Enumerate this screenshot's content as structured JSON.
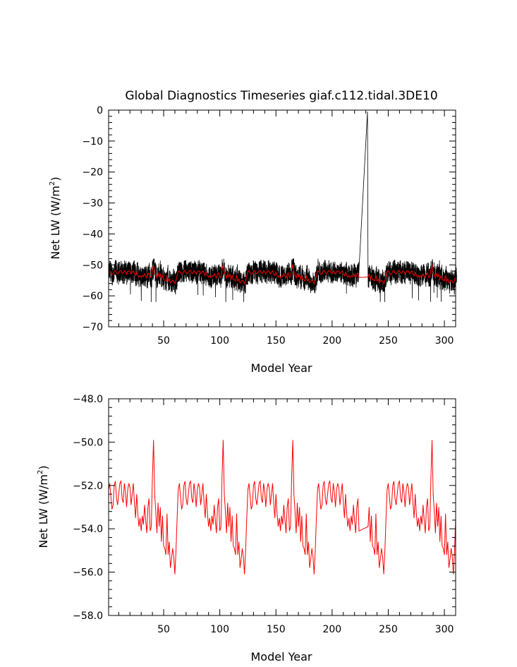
{
  "chart_data": [
    {
      "type": "line",
      "title": "Global Diagnostics Timeseries giaf.c112.tidal.3DE10",
      "xlabel": "Model Year",
      "ylabel": "Net LW (W/m",
      "ylabel_sup": "2",
      "ylabel_suffix": ")",
      "xlim": [
        1,
        310
      ],
      "ylim": [
        -70,
        0
      ],
      "x_ticks": [
        50,
        100,
        150,
        200,
        250,
        300
      ],
      "y_ticks": [
        0,
        -10,
        -20,
        -30,
        -40,
        -50,
        -60,
        -70
      ],
      "y_tick_labels": [
        "0",
        "−10",
        "−20",
        "−30",
        "−40",
        "−50",
        "−60",
        "−70"
      ],
      "grid": false,
      "gap_years": [
        224,
        232
      ],
      "spike": {
        "x": 232,
        "y": -0.5
      },
      "series": [
        {
          "color": "#000000",
          "style": "monthly-noisy",
          "values_summary": {
            "mean": -53.0,
            "min": -62.0,
            "max": -48.0
          }
        },
        {
          "color": "#ff0000",
          "style": "annual-mean"
        }
      ],
      "annual_mean_ref": "chart_data.1.series.0"
    },
    {
      "type": "line",
      "title": "",
      "xlabel": "Model Year",
      "ylabel": "Net LW (W/m",
      "ylabel_sup": "2",
      "ylabel_suffix": ")",
      "xlim": [
        1,
        310
      ],
      "ylim": [
        -58.0,
        -48.0
      ],
      "x_ticks": [
        50,
        100,
        150,
        200,
        250,
        300
      ],
      "y_ticks": [
        -48,
        -50,
        -52,
        -54,
        -56,
        -58
      ],
      "y_tick_labels": [
        "−48.0",
        "−50.0",
        "−52.0",
        "−54.0",
        "−56.0",
        "−58.0"
      ],
      "grid": false,
      "series": [
        {
          "color": "#ff0000",
          "cycle_length": 62,
          "cycle_offsets": [
            0,
            62,
            124,
            186,
            248
          ],
          "gap_years": [
            224,
            232
          ],
          "cycle_x": [
            1,
            2,
            3,
            4,
            5,
            6,
            7,
            8,
            9,
            10,
            11,
            12,
            13,
            14,
            15,
            16,
            17,
            18,
            19,
            20,
            21,
            22,
            23,
            24,
            25,
            26,
            27,
            28,
            29,
            30,
            31,
            32,
            33,
            34,
            35,
            36,
            37,
            38,
            39,
            40,
            41,
            42,
            43,
            44,
            45,
            46,
            47,
            48,
            49,
            50,
            51,
            52,
            53,
            54,
            55,
            56,
            57,
            58,
            59,
            60,
            61,
            62
          ],
          "cycle_values": [
            -52.2,
            -51.9,
            -52.5,
            -53.1,
            -52.9,
            -52.0,
            -51.8,
            -52.6,
            -52.9,
            -52.4,
            -51.9,
            -51.8,
            -52.6,
            -52.8,
            -51.9,
            -52.3,
            -53.0,
            -52.2,
            -51.9,
            -52.1,
            -52.9,
            -52.4,
            -51.9,
            -52.8,
            -53.5,
            -52.4,
            -53.3,
            -53.9,
            -53.5,
            -54.1,
            -53.4,
            -53.8,
            -52.9,
            -53.6,
            -54.2,
            -53.0,
            -52.6,
            -54.1,
            -53.9,
            -51.6,
            -49.9,
            -52.4,
            -53.2,
            -54.2,
            -52.8,
            -53.9,
            -53.0,
            -54.6,
            -53.4,
            -54.8,
            -54.9,
            -55.2,
            -53.3,
            -55.2,
            -54.6,
            -55.8,
            -55.4,
            -54.9,
            -55.3,
            -56.1,
            -55.0,
            -53.5
          ]
        }
      ]
    }
  ]
}
